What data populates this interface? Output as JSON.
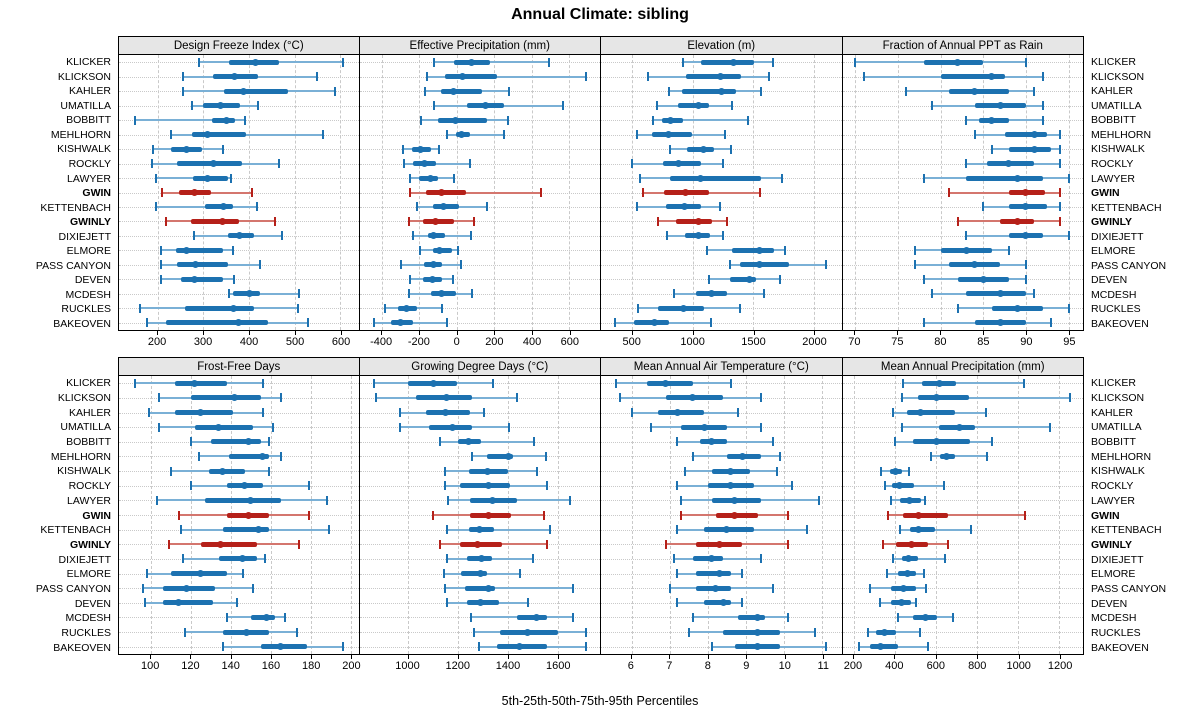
{
  "title": "Annual Climate: sibling",
  "caption": "5th-25th-50th-75th-95th Percentiles",
  "colors": {
    "blue": "#1c71b0",
    "blue_light": "#7ab0d6",
    "red": "#b52019",
    "red_light": "#d4766e",
    "grid": "#c9c9c9",
    "header_bg": "#e6e6e6",
    "border": "#000000"
  },
  "chart_data": {
    "type": "dotplot-percentiles",
    "percentiles": [
      5,
      25,
      50,
      75,
      95
    ],
    "legend_note": "thin line = 5th-95th, thick bar = 25th-75th, dot = 50th percentile",
    "stations": [
      "KLICKER",
      "KLICKSON",
      "KAHLER",
      "UMATILLA",
      "BOBBITT",
      "MEHLHORN",
      "KISHWALK",
      "ROCKLY",
      "LAWYER",
      "GWIN",
      "KETTENBACH",
      "GWINLY",
      "DIXIEJETT",
      "ELMORE",
      "PASS CANYON",
      "DEVEN",
      "MCDESH",
      "RUCKLES",
      "BAKEOVEN"
    ],
    "highlighted_stations": [
      "GWIN",
      "GWINLY"
    ],
    "panels": [
      {
        "title": "Design Freeze Index (°C)",
        "grid_row": "top",
        "xlim": [
          115,
          640
        ],
        "ticks": [
          200,
          300,
          400,
          500,
          600
        ],
        "values": [
          [
            290,
            357,
            414,
            465,
            607
          ],
          [
            255,
            321,
            368,
            420,
            549
          ],
          [
            255,
            345,
            389,
            486,
            589
          ],
          [
            276,
            300,
            337,
            381,
            420
          ],
          [
            149,
            318,
            350,
            370,
            392
          ],
          [
            230,
            276,
            309,
            393,
            562
          ],
          [
            190,
            230,
            263,
            296,
            344
          ],
          [
            188,
            242,
            323,
            385,
            465
          ],
          [
            197,
            278,
            310,
            353,
            360
          ],
          [
            210,
            247,
            280,
            317,
            407
          ],
          [
            197,
            303,
            344,
            364,
            418
          ],
          [
            219,
            272,
            341,
            377,
            456
          ],
          [
            280,
            353,
            380,
            410,
            472
          ],
          [
            208,
            240,
            262,
            342,
            364
          ],
          [
            206,
            242,
            283,
            353,
            423
          ],
          [
            208,
            250,
            281,
            342,
            368
          ],
          [
            357,
            365,
            402,
            425,
            510
          ],
          [
            161,
            260,
            365,
            411,
            507
          ],
          [
            176,
            219,
            378,
            442,
            530
          ]
        ]
      },
      {
        "title": "Effective Precipitation (mm)",
        "grid_row": "top",
        "xlim": [
          -520,
          765
        ],
        "ticks": [
          -400,
          -200,
          0,
          200,
          400,
          600
        ],
        "values": [
          [
            -120,
            -15,
            80,
            175,
            490
          ],
          [
            -158,
            -65,
            30,
            215,
            688
          ],
          [
            -172,
            -87,
            -16,
            134,
            280
          ],
          [
            -120,
            55,
            152,
            250,
            568
          ],
          [
            -193,
            -100,
            -7,
            161,
            276
          ],
          [
            -55,
            -7,
            25,
            73,
            250
          ],
          [
            -285,
            -240,
            -193,
            -136,
            -96
          ],
          [
            -281,
            -232,
            -172,
            -113,
            73
          ],
          [
            -251,
            -202,
            -143,
            -101,
            -16
          ],
          [
            -250,
            -165,
            -82,
            48,
            451
          ],
          [
            -215,
            -126,
            -71,
            9,
            163
          ],
          [
            -258,
            -183,
            -116,
            -14,
            92
          ],
          [
            -234,
            -152,
            -126,
            -65,
            78
          ],
          [
            -196,
            -126,
            -92,
            -25,
            5
          ],
          [
            -300,
            -175,
            -122,
            -78,
            20
          ],
          [
            -250,
            -180,
            -130,
            -80,
            -20
          ],
          [
            -255,
            -136,
            -83,
            -7,
            81
          ],
          [
            -382,
            -313,
            -267,
            -214,
            -81
          ],
          [
            -444,
            -352,
            -299,
            -232,
            -51
          ]
        ]
      },
      {
        "title": "Elevation (m)",
        "grid_row": "top",
        "xlim": [
          240,
          2230
        ],
        "ticks": [
          500,
          1000,
          1500,
          2000
        ],
        "values": [
          [
            920,
            1065,
            1335,
            1505,
            1665
          ],
          [
            630,
            940,
            1230,
            1395,
            1630
          ],
          [
            805,
            910,
            1240,
            1360,
            1560
          ],
          [
            700,
            875,
            1045,
            1135,
            1325
          ],
          [
            670,
            745,
            815,
            915,
            1455
          ],
          [
            540,
            660,
            800,
            990,
            1270
          ],
          [
            815,
            950,
            1090,
            1175,
            1315
          ],
          [
            500,
            750,
            880,
            1065,
            1250
          ],
          [
            565,
            815,
            1060,
            1560,
            1735
          ],
          [
            585,
            765,
            940,
            1130,
            1555
          ],
          [
            540,
            775,
            935,
            1065,
            1225
          ],
          [
            710,
            860,
            1050,
            1160,
            1285
          ],
          [
            790,
            935,
            1045,
            1140,
            1250
          ],
          [
            1120,
            1325,
            1555,
            1670,
            1765
          ],
          [
            1310,
            1390,
            1550,
            1795,
            2105
          ],
          [
            1135,
            1310,
            1470,
            1525,
            1720
          ],
          [
            840,
            1025,
            1155,
            1285,
            1590
          ],
          [
            545,
            715,
            925,
            1090,
            1390
          ],
          [
            355,
            515,
            680,
            805,
            1150
          ]
        ]
      },
      {
        "title": "Fraction of Annual PPT as Rain",
        "grid_row": "top",
        "xlim": [
          68.5,
          96.7
        ],
        "ticks": [
          70,
          75,
          80,
          85,
          90,
          95
        ],
        "values": [
          [
            70,
            78,
            82,
            85,
            90
          ],
          [
            71,
            80,
            86,
            87.5,
            92
          ],
          [
            76,
            81,
            84,
            88,
            91
          ],
          [
            79,
            84,
            87,
            90,
            92
          ],
          [
            83,
            84.5,
            86,
            88,
            92
          ],
          [
            84,
            87.5,
            91,
            92.5,
            94
          ],
          [
            86,
            88,
            91,
            93,
            94
          ],
          [
            83,
            85.5,
            88,
            91,
            94
          ],
          [
            78,
            83,
            89,
            92,
            95
          ],
          [
            81,
            88,
            90,
            92.3,
            94
          ],
          [
            85,
            88,
            90,
            92.5,
            94
          ],
          [
            82,
            87,
            89,
            91,
            94
          ],
          [
            83,
            88,
            90,
            92,
            95
          ],
          [
            77,
            80,
            83,
            86,
            88
          ],
          [
            77,
            81,
            84,
            87,
            90
          ],
          [
            78,
            82,
            85,
            88,
            90
          ],
          [
            79,
            83,
            87,
            90,
            91
          ],
          [
            82,
            86,
            89,
            92,
            95
          ],
          [
            78,
            84,
            87,
            90,
            93
          ]
        ]
      },
      {
        "title": "Frost-Free Days",
        "grid_row": "bottom",
        "xlim": [
          84,
          204
        ],
        "ticks": [
          100,
          120,
          140,
          160,
          180,
          200
        ],
        "values": [
          [
            92,
            112,
            122,
            138,
            156
          ],
          [
            104,
            120,
            142,
            155,
            165
          ],
          [
            99,
            112,
            125,
            141,
            156
          ],
          [
            104,
            122,
            134,
            151,
            161
          ],
          [
            120,
            130,
            149,
            155,
            159
          ],
          [
            124,
            139,
            156,
            159,
            165
          ],
          [
            110,
            129,
            136,
            147,
            159
          ],
          [
            120,
            138,
            147,
            156,
            179
          ],
          [
            103,
            127,
            150,
            165,
            188
          ],
          [
            114,
            138,
            149,
            159,
            179
          ],
          [
            115,
            136,
            154,
            159,
            189
          ],
          [
            109,
            125,
            135,
            153,
            174
          ],
          [
            116,
            134,
            146,
            153,
            157
          ],
          [
            98,
            110,
            125,
            138,
            146
          ],
          [
            96,
            106,
            118,
            132,
            151
          ],
          [
            97,
            106,
            114,
            131,
            143
          ],
          [
            138,
            150,
            158,
            162,
            167
          ],
          [
            117,
            136,
            148,
            159,
            173
          ],
          [
            136,
            155,
            165,
            178,
            196
          ]
        ]
      },
      {
        "title": "Growing Degree Days (°C)",
        "grid_row": "bottom",
        "xlim": [
          805,
          1770
        ],
        "ticks": [
          1000,
          1200,
          1400,
          1600
        ],
        "values": [
          [
            865,
            1000,
            1100,
            1197,
            1340
          ],
          [
            870,
            1030,
            1155,
            1257,
            1435
          ],
          [
            968,
            1073,
            1150,
            1250,
            1305
          ],
          [
            968,
            1085,
            1180,
            1257,
            1404
          ],
          [
            1130,
            1200,
            1244,
            1293,
            1507
          ],
          [
            1257,
            1317,
            1404,
            1421,
            1555
          ],
          [
            1147,
            1244,
            1317,
            1400,
            1517
          ],
          [
            1147,
            1210,
            1324,
            1410,
            1557
          ],
          [
            1160,
            1250,
            1340,
            1437,
            1650
          ],
          [
            1100,
            1250,
            1324,
            1413,
            1544
          ],
          [
            1155,
            1244,
            1288,
            1344,
            1570
          ],
          [
            1130,
            1210,
            1280,
            1377,
            1557
          ],
          [
            1155,
            1237,
            1293,
            1337,
            1500
          ],
          [
            1144,
            1211,
            1290,
            1317,
            1448
          ],
          [
            1150,
            1230,
            1324,
            1350,
            1660
          ],
          [
            1155,
            1237,
            1290,
            1364,
            1480
          ],
          [
            1253,
            1437,
            1515,
            1557,
            1660
          ],
          [
            1265,
            1370,
            1480,
            1600,
            1715
          ],
          [
            1284,
            1357,
            1448,
            1557,
            1715
          ]
        ]
      },
      {
        "title": "Mean Annual Air Temperature (°C)",
        "grid_row": "bottom",
        "xlim": [
          5.2,
          11.5
        ],
        "ticks": [
          6,
          7,
          8,
          9,
          10,
          11
        ],
        "values": [
          [
            5.6,
            6.4,
            6.9,
            7.6,
            8.6
          ],
          [
            5.7,
            6.9,
            7.6,
            8.4,
            9.4
          ],
          [
            6.0,
            6.7,
            7.2,
            7.9,
            8.8
          ],
          [
            6.5,
            7.3,
            7.9,
            8.5,
            9.4
          ],
          [
            7.2,
            7.8,
            8.1,
            8.5,
            9.7
          ],
          [
            7.6,
            8.5,
            8.9,
            9.4,
            9.9
          ],
          [
            7.4,
            8.1,
            8.6,
            9.1,
            9.8
          ],
          [
            7.2,
            8.0,
            8.6,
            9.2,
            10.2
          ],
          [
            7.3,
            8.1,
            8.7,
            9.4,
            10.9
          ],
          [
            7.3,
            8.2,
            8.7,
            9.3,
            10.1
          ],
          [
            7.2,
            7.9,
            8.5,
            9.2,
            10.6
          ],
          [
            6.9,
            7.7,
            8.3,
            8.9,
            10.1
          ],
          [
            7.1,
            7.6,
            8.1,
            8.4,
            9.4
          ],
          [
            7.2,
            7.7,
            8.3,
            8.6,
            8.9
          ],
          [
            7.0,
            7.7,
            8.2,
            8.6,
            9.7
          ],
          [
            7.2,
            7.9,
            8.4,
            8.6,
            8.9
          ],
          [
            7.6,
            8.8,
            9.3,
            9.5,
            10.1
          ],
          [
            7.5,
            8.4,
            9.3,
            9.9,
            10.8
          ],
          [
            8.1,
            8.7,
            9.3,
            9.9,
            11.1
          ]
        ]
      },
      {
        "title": "Mean Annual Precipitation (mm)",
        "grid_row": "bottom",
        "xlim": [
          145,
          1315
        ],
        "ticks": [
          200,
          400,
          600,
          800,
          1000,
          1200
        ],
        "values": [
          [
            440,
            530,
            618,
            695,
            1030
          ],
          [
            435,
            513,
            600,
            760,
            1250
          ],
          [
            390,
            460,
            525,
            690,
            845
          ],
          [
            435,
            613,
            715,
            790,
            1153
          ],
          [
            400,
            490,
            600,
            767,
            870
          ],
          [
            575,
            618,
            650,
            694,
            848
          ],
          [
            333,
            375,
            403,
            435,
            467
          ],
          [
            354,
            386,
            424,
            495,
            638
          ],
          [
            380,
            427,
            472,
            527,
            548
          ],
          [
            365,
            440,
            516,
            657,
            1035
          ],
          [
            424,
            475,
            516,
            594,
            770
          ],
          [
            343,
            403,
            479,
            560,
            657
          ],
          [
            390,
            435,
            467,
            511,
            645
          ],
          [
            362,
            414,
            459,
            505,
            540
          ],
          [
            280,
            380,
            443,
            505,
            553
          ],
          [
            326,
            381,
            430,
            479,
            505
          ],
          [
            414,
            488,
            548,
            605,
            683
          ],
          [
            268,
            310,
            349,
            407,
            520
          ],
          [
            224,
            278,
            330,
            414,
            560
          ]
        ]
      }
    ]
  }
}
